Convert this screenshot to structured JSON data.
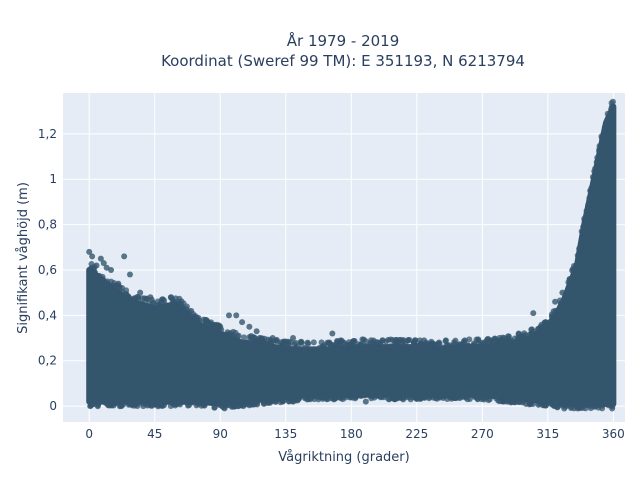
{
  "chart_data": {
    "type": "scatter",
    "title_lines": [
      "År 1979 - 2019",
      "Koordinat (Sweref 99 TM): E 351193, N 6213794"
    ],
    "xlabel": "Vågriktning (grader)",
    "ylabel": "Signifikant våghöjd (m)",
    "xlim": [
      -18,
      368
    ],
    "ylim": [
      -0.07,
      1.38
    ],
    "x_ticks": [
      0,
      45,
      90,
      135,
      180,
      225,
      270,
      315,
      360
    ],
    "x_tick_labels": [
      "0",
      "45",
      "90",
      "135",
      "180",
      "225",
      "270",
      "315",
      "360"
    ],
    "y_ticks": [
      0,
      0.2,
      0.4,
      0.6,
      0.8,
      1,
      1.2
    ],
    "y_tick_labels": [
      "0",
      "0,2",
      "0,4",
      "0,6",
      "0,8",
      "1",
      "1,2"
    ],
    "grid": true,
    "marker_color": "#34566d",
    "plot_bg": "#e5ecf6",
    "series": [
      {
        "band": {
          "x": [
            0,
            10,
            20,
            30,
            45,
            60,
            75,
            90,
            105,
            120,
            135,
            150,
            165,
            180,
            195,
            210,
            225,
            240,
            255,
            270,
            285,
            300,
            315,
            325,
            335,
            340,
            345,
            350,
            355,
            360
          ],
          "y_low": [
            0.02,
            0.02,
            0.02,
            0.02,
            0.02,
            0.02,
            0.02,
            0.01,
            0.02,
            0.03,
            0.04,
            0.05,
            0.05,
            0.05,
            0.05,
            0.05,
            0.05,
            0.05,
            0.05,
            0.05,
            0.04,
            0.03,
            0.02,
            0.01,
            0.01,
            0.01,
            0.01,
            0.01,
            0.01,
            0.01
          ],
          "y_high": [
            0.6,
            0.55,
            0.5,
            0.46,
            0.43,
            0.45,
            0.36,
            0.32,
            0.28,
            0.27,
            0.25,
            0.25,
            0.25,
            0.26,
            0.26,
            0.26,
            0.26,
            0.25,
            0.26,
            0.26,
            0.27,
            0.29,
            0.35,
            0.45,
            0.62,
            0.8,
            0.95,
            1.1,
            1.25,
            1.32
          ]
        },
        "points": [
          [
            0,
            0.68
          ],
          [
            2,
            0.66
          ],
          [
            5,
            0.62
          ],
          [
            8,
            0.65
          ],
          [
            10,
            0.63
          ],
          [
            12,
            0.61
          ],
          [
            15,
            0.6
          ],
          [
            24,
            0.66
          ],
          [
            28,
            0.58
          ],
          [
            20,
            0.54
          ],
          [
            35,
            0.5
          ],
          [
            42,
            0.48
          ],
          [
            50,
            0.47
          ],
          [
            58,
            0.46
          ],
          [
            62,
            0.45
          ],
          [
            70,
            0.42
          ],
          [
            80,
            0.38
          ],
          [
            90,
            0.35
          ],
          [
            96,
            0.4
          ],
          [
            101,
            0.4
          ],
          [
            105,
            0.37
          ],
          [
            110,
            0.35
          ],
          [
            115,
            0.33
          ],
          [
            126,
            0.3
          ],
          [
            140,
            0.3
          ],
          [
            150,
            0.28
          ],
          [
            167,
            0.32
          ],
          [
            180,
            0.27
          ],
          [
            200,
            0.28
          ],
          [
            215,
            0.29
          ],
          [
            230,
            0.29
          ],
          [
            245,
            0.29
          ],
          [
            258,
            0.29
          ],
          [
            280,
            0.29
          ],
          [
            285,
            0.3
          ],
          [
            295,
            0.32
          ],
          [
            304,
            0.32
          ],
          [
            305,
            0.41
          ],
          [
            310,
            0.35
          ],
          [
            318,
            0.38
          ],
          [
            320,
            0.46
          ],
          [
            325,
            0.5
          ],
          [
            330,
            0.56
          ],
          [
            333,
            0.6
          ],
          [
            336,
            0.64
          ],
          [
            329,
            0.48
          ],
          [
            355,
            0.62
          ],
          [
            358,
            0.55
          ],
          [
            93,
            -0.01
          ],
          [
            100,
            0.0
          ],
          [
            120,
            0.01
          ],
          [
            140,
            0.02
          ],
          [
            160,
            0.04
          ],
          [
            190,
            0.02
          ],
          [
            210,
            0.03
          ],
          [
            225,
            0.04
          ],
          [
            240,
            0.04
          ],
          [
            265,
            0.04
          ],
          [
            290,
            0.02
          ],
          [
            300,
            0.01
          ],
          [
            310,
            0.02
          ],
          [
            345,
            0.9
          ],
          [
            350,
            1.05
          ],
          [
            355,
            1.2
          ],
          [
            358,
            1.28
          ],
          [
            359,
            1.32
          ],
          [
            341,
            0.82
          ],
          [
            344,
            0.74
          ],
          [
            347,
            0.86
          ],
          [
            352,
            1.12
          ],
          [
            356,
            1.24
          ]
        ]
      }
    ]
  }
}
